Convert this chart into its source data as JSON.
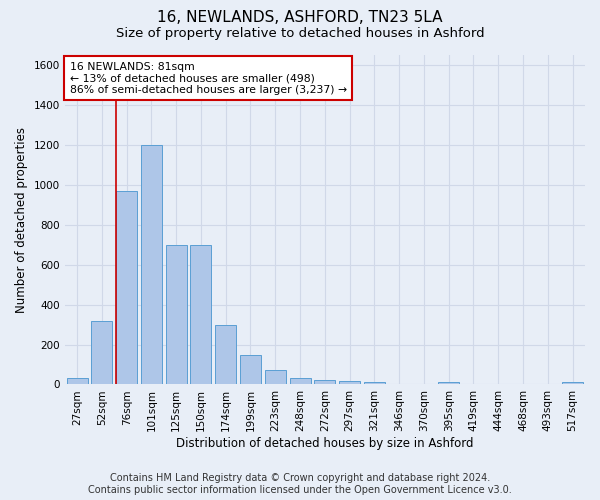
{
  "title": "16, NEWLANDS, ASHFORD, TN23 5LA",
  "subtitle": "Size of property relative to detached houses in Ashford",
  "xlabel": "Distribution of detached houses by size in Ashford",
  "ylabel": "Number of detached properties",
  "bar_labels": [
    "27sqm",
    "52sqm",
    "76sqm",
    "101sqm",
    "125sqm",
    "150sqm",
    "174sqm",
    "199sqm",
    "223sqm",
    "248sqm",
    "272sqm",
    "297sqm",
    "321sqm",
    "346sqm",
    "370sqm",
    "395sqm",
    "419sqm",
    "444sqm",
    "468sqm",
    "493sqm",
    "517sqm"
  ],
  "bar_values": [
    30,
    320,
    970,
    1200,
    700,
    700,
    300,
    150,
    70,
    30,
    20,
    15,
    10,
    0,
    0,
    10,
    0,
    0,
    0,
    0,
    10
  ],
  "bar_color": "#aec6e8",
  "bar_edge_color": "#5a9fd4",
  "vline_color": "#cc0000",
  "vline_bar_index": 2,
  "ylim": [
    0,
    1650
  ],
  "yticks": [
    0,
    200,
    400,
    600,
    800,
    1000,
    1200,
    1400,
    1600
  ],
  "annotation_text": "16 NEWLANDS: 81sqm\n← 13% of detached houses are smaller (498)\n86% of semi-detached houses are larger (3,237) →",
  "annotation_box_color": "#cc0000",
  "footer_line1": "Contains HM Land Registry data © Crown copyright and database right 2024.",
  "footer_line2": "Contains public sector information licensed under the Open Government Licence v3.0.",
  "background_color": "#e8eef7",
  "plot_bg_color": "#e8eef7",
  "grid_color": "#d0d8e8",
  "title_fontsize": 11,
  "subtitle_fontsize": 9.5,
  "axis_label_fontsize": 8.5,
  "tick_fontsize": 7.5,
  "footer_fontsize": 7
}
